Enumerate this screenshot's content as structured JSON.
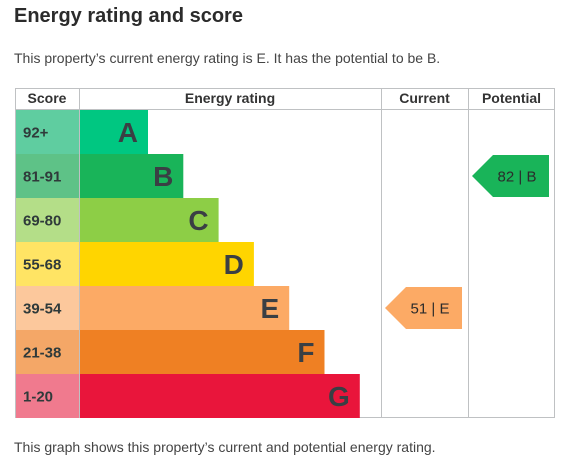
{
  "heading": "Energy rating and score",
  "summary": "This property’s current energy rating is E. It has the potential to be B.",
  "footnote": "This graph shows this property’s current and potential energy rating.",
  "chart_data": {
    "type": "bar",
    "columns": [
      "Score",
      "Energy rating",
      "Current",
      "Potential"
    ],
    "bands": [
      {
        "letter": "A",
        "score_range": "92+",
        "bar_color": "#00c781",
        "score_color": "#5fcda0"
      },
      {
        "letter": "B",
        "score_range": "81-91",
        "bar_color": "#19b459",
        "score_color": "#5ec287"
      },
      {
        "letter": "C",
        "score_range": "69-80",
        "bar_color": "#8dce46",
        "score_color": "#b4de88"
      },
      {
        "letter": "D",
        "score_range": "55-68",
        "bar_color": "#ffd500",
        "score_color": "#ffe464"
      },
      {
        "letter": "E",
        "score_range": "39-54",
        "bar_color": "#fcaa65",
        "score_color": "#fcc89c"
      },
      {
        "letter": "F",
        "score_range": "21-38",
        "bar_color": "#ef8023",
        "score_color": "#f4a767"
      },
      {
        "letter": "G",
        "score_range": "1-20",
        "bar_color": "#e9153b",
        "score_color": "#f07a8e"
      }
    ],
    "current": {
      "score": 51,
      "band": "E",
      "label": "51 | E",
      "color": "#fcaa65"
    },
    "potential": {
      "score": 82,
      "band": "B",
      "label": "82 | B",
      "color": "#19b459"
    }
  }
}
